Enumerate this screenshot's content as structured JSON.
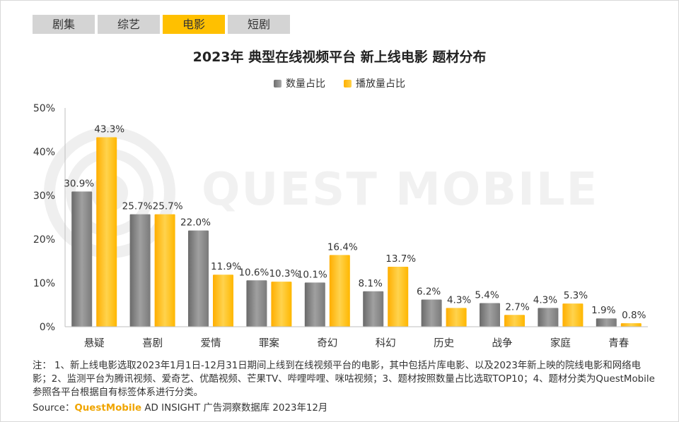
{
  "tabs": [
    {
      "label": "剧集",
      "active": false
    },
    {
      "label": "综艺",
      "active": false
    },
    {
      "label": "电影",
      "active": true
    },
    {
      "label": "短剧",
      "active": false
    }
  ],
  "colors": {
    "series_count": "#808080",
    "series_play": "#ffc000",
    "tab_active": "#ffc000",
    "tab_inactive": "#d4d4d4",
    "axis": "#bfbfbf"
  },
  "chart_data": {
    "type": "bar",
    "title": "2023年 典型在线视频平台 新上线电影 题材分布",
    "categories": [
      "悬疑",
      "喜剧",
      "爱情",
      "罪案",
      "奇幻",
      "科幻",
      "历史",
      "战争",
      "家庭",
      "青春"
    ],
    "series": [
      {
        "name": "数量占比",
        "values": [
          30.9,
          25.7,
          22.0,
          10.6,
          10.1,
          8.1,
          6.2,
          5.4,
          4.3,
          1.9
        ]
      },
      {
        "name": "播放量占比",
        "values": [
          43.3,
          25.7,
          11.9,
          10.3,
          16.4,
          13.7,
          4.3,
          2.7,
          5.3,
          0.8
        ]
      }
    ],
    "ylim": [
      0,
      50
    ],
    "yticks": [
      "0%",
      "10%",
      "20%",
      "30%",
      "40%",
      "50%"
    ],
    "value_suffix": "%",
    "grid": false,
    "legend": "top-center"
  },
  "watermark": "QUEST MOBILE",
  "notes": "注：  1、新上线电影选取2023年1月1日-12月31日期间上线到在线视频平台的电影，其中包括片库电影、以及2023年新上映的院线电影和网络电影；2、监测平台为腾讯视频、爱奇艺、优酷视频、芒果TV、哔哩哔哩、咪咕视频；3、题材按照数量占比选取TOP10；4、题材分类为QuestMobile参照各平台根据自有标签体系进行分类。",
  "source": {
    "prefix": "Source：",
    "brand": "QuestMobile",
    "rest": " AD INSIGHT 广告洞察数据库 2023年12月"
  }
}
